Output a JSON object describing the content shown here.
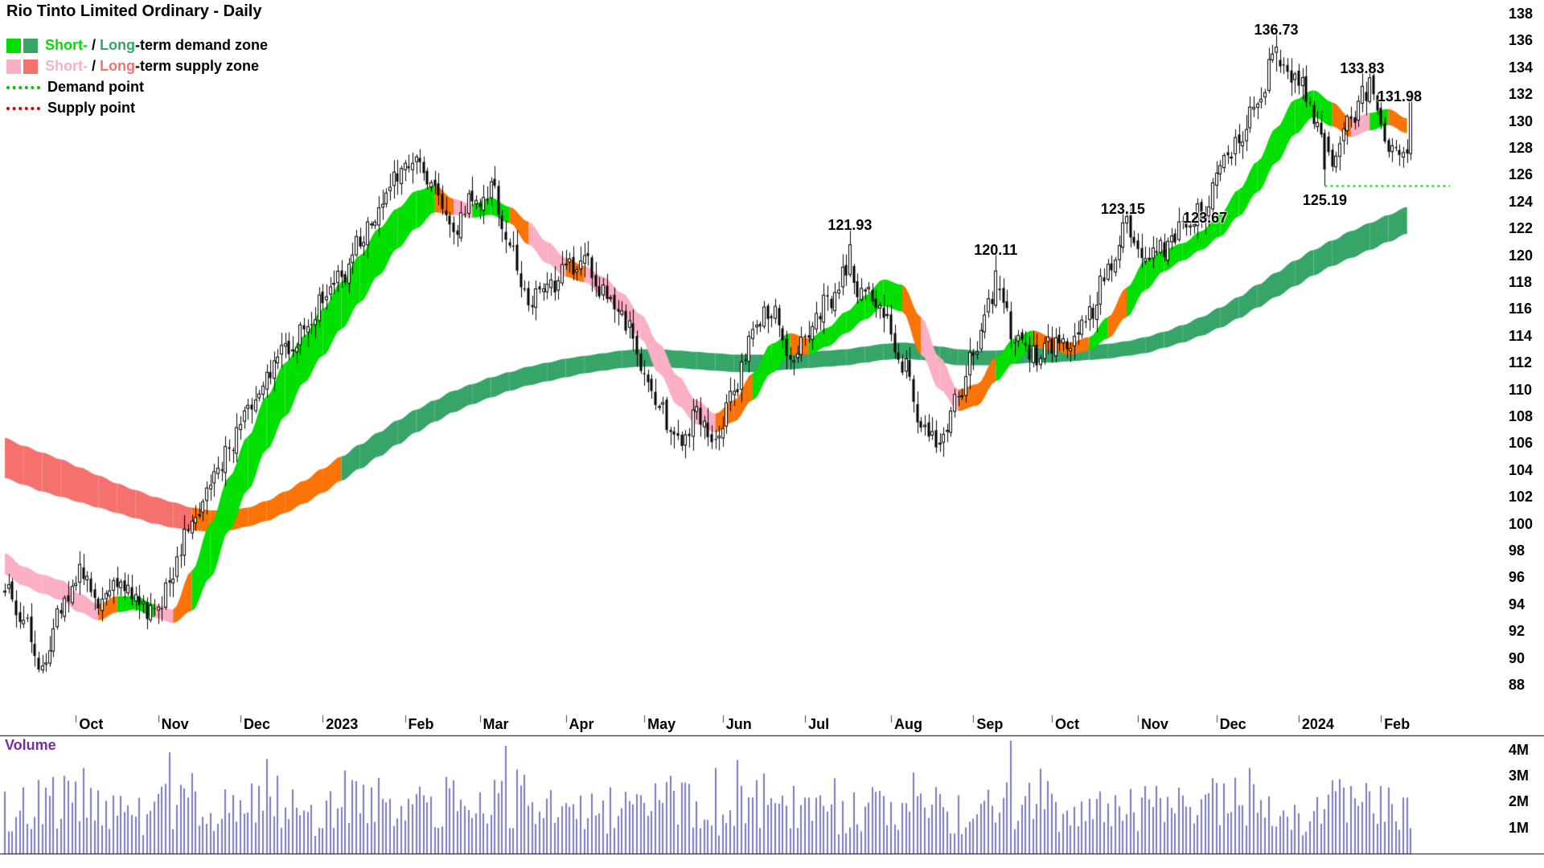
{
  "header": {
    "title": "Rio Tinto Limited Ordinary - Daily"
  },
  "legend": {
    "demand": {
      "short_label": "Short-",
      "sep": " / ",
      "long_label": "Long",
      "rest": "-term demand zone",
      "short_color": "#00DF00",
      "long_color": "#37A468"
    },
    "supply": {
      "short_label": "Short-",
      "sep": " / ",
      "long_label": "Long",
      "rest": "-term supply zone",
      "short_color": "#FBAFC4",
      "long_color": "#F4716D"
    },
    "demand_point": {
      "label": "Demand point",
      "color": "#00C400"
    },
    "supply_point": {
      "label": "Supply point",
      "color": "#DE0000"
    }
  },
  "price_axis": {
    "ticks": [
      138,
      136,
      134,
      132,
      130,
      128,
      126,
      124,
      122,
      120,
      118,
      116,
      114,
      112,
      110,
      108,
      106,
      104,
      102,
      100,
      98,
      96,
      94,
      92,
      90,
      88
    ]
  },
  "x_axis": {
    "labels": [
      {
        "label": "Oct",
        "d": 19
      },
      {
        "label": "Nov",
        "d": 41
      },
      {
        "label": "Dec",
        "d": 63
      },
      {
        "label": "2023",
        "d": 85
      },
      {
        "label": "Feb",
        "d": 107
      },
      {
        "label": "Mar",
        "d": 127
      },
      {
        "label": "Apr",
        "d": 150
      },
      {
        "label": "May",
        "d": 171
      },
      {
        "label": "Jun",
        "d": 192
      },
      {
        "label": "Jul",
        "d": 214
      },
      {
        "label": "Aug",
        "d": 237
      },
      {
        "label": "Sep",
        "d": 259
      },
      {
        "label": "Oct",
        "d": 280
      },
      {
        "label": "Nov",
        "d": 303
      },
      {
        "label": "Dec",
        "d": 324
      },
      {
        "label": "2024",
        "d": 346
      },
      {
        "label": "Feb",
        "d": 368
      }
    ]
  },
  "volume": {
    "label": "Volume",
    "ticks": [
      {
        "label": "4M",
        "v": 4
      },
      {
        "label": "3M",
        "v": 3
      },
      {
        "label": "2M",
        "v": 2
      },
      {
        "label": "1M",
        "v": 1
      }
    ]
  },
  "chart_data": {
    "type": "candlestick",
    "title": "Rio Tinto Limited Ordinary - Daily",
    "ylim": [
      88,
      138
    ],
    "n_days": 377,
    "anchors_weekly_close": [
      95.0,
      92.5,
      89.5,
      93.5,
      96.5,
      94.5,
      96.0,
      94.0,
      93.0,
      96.5,
      100.0,
      103.0,
      105.5,
      108.5,
      111.0,
      113.0,
      114.5,
      116.5,
      118.5,
      121.0,
      123.5,
      126.0,
      127.3,
      124.5,
      122.0,
      124.0,
      124.8,
      120.5,
      116.5,
      117.5,
      119.0,
      119.5,
      117.5,
      115.5,
      112.0,
      108.5,
      106.0,
      108.0,
      106.5,
      110.0,
      114.0,
      116.0,
      112.5,
      114.5,
      116.5,
      119.0,
      117.0,
      115.5,
      112.0,
      107.5,
      105.5,
      109.5,
      113.5,
      117.5,
      114.0,
      112.5,
      113.5,
      113.0,
      115.5,
      119.0,
      122.3,
      120.3,
      120.5,
      122.0,
      123.2,
      126.5,
      129.0,
      131.5,
      135.0,
      133.5,
      130.5,
      126.8,
      130.5,
      132.5,
      128.5,
      127.3
    ],
    "short_band": {
      "top": [
        97.8,
        96.8,
        96.2,
        95.8,
        94.8,
        94.0,
        94.6,
        94.6,
        94.0,
        93.6,
        96.5,
        100.0,
        103.5,
        106.5,
        109.5,
        112.0,
        114.0,
        116.0,
        118.0,
        120.0,
        122.0,
        123.5,
        124.8,
        125.2,
        124.2,
        123.8,
        124.3,
        123.6,
        122.5,
        121.0,
        119.8,
        119.2,
        118.4,
        117.2,
        115.6,
        113.4,
        111.0,
        109.2,
        108.2,
        109.2,
        111.2,
        113.4,
        114.2,
        113.8,
        114.6,
        115.8,
        117.0,
        118.2,
        117.8,
        115.4,
        112.4,
        110.0,
        110.4,
        112.4,
        113.8,
        114.4,
        113.9,
        113.5,
        113.9,
        115.4,
        117.6,
        119.6,
        120.4,
        120.9,
        121.8,
        123.1,
        124.9,
        127.0,
        129.5,
        131.6,
        132.3,
        131.4,
        130.2,
        130.6,
        130.9,
        130.2
      ],
      "bot": [
        96.2,
        95.4,
        94.8,
        94.3,
        93.4,
        92.8,
        93.4,
        93.6,
        93.0,
        92.6,
        93.5,
        96.0,
        99.5,
        102.5,
        105.5,
        108.0,
        110.5,
        112.5,
        114.5,
        116.5,
        118.5,
        120.5,
        122.0,
        123.2,
        123.0,
        122.8,
        123.0,
        122.4,
        120.8,
        119.4,
        118.4,
        118.0,
        117.0,
        115.6,
        113.8,
        111.2,
        108.8,
        107.4,
        106.8,
        107.6,
        109.2,
        111.2,
        112.6,
        112.6,
        113.2,
        114.2,
        115.2,
        116.2,
        115.8,
        112.6,
        110.0,
        108.4,
        108.8,
        110.6,
        112.0,
        113.2,
        112.9,
        112.6,
        112.9,
        113.8,
        115.4,
        117.4,
        118.8,
        119.6,
        120.4,
        121.4,
        122.9,
        124.7,
        126.9,
        129.0,
        130.3,
        129.6,
        128.8,
        129.3,
        129.7,
        129.1
      ],
      "state_segments": [
        "pppppoggpo",
        "gggggggggg",
        "gggopggopp",
        "opppppppoo",
        "ggogggggop",
        "pooggooogo",
        "gggggggggg",
        "gopgoo"
      ]
    },
    "long_band": {
      "top": [
        106.4,
        105.8,
        105.3,
        104.8,
        104.2,
        103.6,
        103.0,
        102.5,
        102.0,
        101.6,
        101.2,
        101.0,
        101.0,
        101.2,
        101.7,
        102.4,
        103.2,
        104.1,
        105.0,
        105.9,
        106.8,
        107.7,
        108.5,
        109.2,
        109.9,
        110.4,
        110.9,
        111.3,
        111.7,
        112.0,
        112.3,
        112.5,
        112.7,
        112.9,
        113.0,
        113.0,
        112.9,
        112.8,
        112.7,
        112.6,
        112.6,
        112.6,
        112.7,
        112.8,
        112.9,
        113.0,
        113.2,
        113.4,
        113.5,
        113.4,
        113.2,
        113.0,
        112.9,
        112.9,
        113.0,
        113.1,
        113.1,
        113.2,
        113.3,
        113.4,
        113.6,
        113.9,
        114.3,
        114.8,
        115.4,
        116.1,
        116.9,
        117.8,
        118.7,
        119.6,
        120.4,
        121.1,
        121.8,
        122.4,
        123.0,
        123.6
      ],
      "bot": [
        103.4,
        102.9,
        102.4,
        102.0,
        101.6,
        101.2,
        100.8,
        100.4,
        100.0,
        99.7,
        99.5,
        99.4,
        99.5,
        99.8,
        100.2,
        100.8,
        101.5,
        102.3,
        103.2,
        104.1,
        105.0,
        105.9,
        106.8,
        107.6,
        108.3,
        108.9,
        109.4,
        109.9,
        110.3,
        110.6,
        110.9,
        111.2,
        111.4,
        111.6,
        111.7,
        111.7,
        111.6,
        111.5,
        111.4,
        111.3,
        111.3,
        111.4,
        111.5,
        111.6,
        111.7,
        111.8,
        112.0,
        112.2,
        112.3,
        112.2,
        112.0,
        111.8,
        111.8,
        111.8,
        111.9,
        112.0,
        112.0,
        112.1,
        112.2,
        112.3,
        112.5,
        112.7,
        113.1,
        113.5,
        114.0,
        114.6,
        115.3,
        116.1,
        116.9,
        117.7,
        118.5,
        119.2,
        119.8,
        120.4,
        121.0,
        121.6
      ],
      "state_segments": [
        "RRRRRRRRRR",
        "OOOOOOOO",
        "GGGGGGGGGG",
        "GGGGGGGGGG",
        "GGGGGGGGGG",
        "GGGGGGGGGG",
        "GGGGGGGGGG",
        "GGGGGGGG"
      ]
    },
    "events": [
      {
        "d": 226,
        "t": "h",
        "v": 121.93
      },
      {
        "d": 265,
        "t": "h",
        "v": 120.11
      },
      {
        "d": 299,
        "t": "h",
        "v": 123.15
      },
      {
        "d": 321,
        "t": "h",
        "v": 123.67
      },
      {
        "d": 340,
        "t": "h",
        "v": 136.73
      },
      {
        "d": 353,
        "t": "l",
        "v": 125.19
      },
      {
        "d": 363,
        "t": "h",
        "v": 133.83
      },
      {
        "d": 376,
        "t": "c",
        "v": 131.98
      }
    ],
    "annotations": [
      {
        "text": "121.93",
        "d": 226,
        "v": 121.93,
        "pos": "above",
        "dy": 10
      },
      {
        "text": "120.11",
        "d": 265,
        "v": 120.11,
        "pos": "above",
        "dy": 10
      },
      {
        "text": "123.15",
        "d": 299,
        "v": 123.15,
        "pos": "above",
        "dy": 10
      },
      {
        "text": "123.67",
        "d": 321,
        "v": 123.67,
        "pos": "above",
        "dy": 30
      },
      {
        "text": "136.73",
        "d": 340,
        "v": 136.73,
        "pos": "above",
        "dy": 14
      },
      {
        "text": "125.19",
        "d": 353,
        "v": 125.19,
        "pos": "below",
        "dy": 0
      },
      {
        "text": "133.83",
        "d": 363,
        "v": 133.83,
        "pos": "above",
        "dy": 13
      },
      {
        "text": "131.98",
        "d": 373,
        "v": 131.98,
        "pos": "above",
        "dy": 17
      }
    ],
    "demand_line": {
      "value": 125.19,
      "from_d": 353
    },
    "volume_anchors": [
      1.7,
      1.6,
      1.8,
      1.9,
      2.2,
      1.7,
      1.5,
      1.4,
      1.6,
      1.9,
      2.1,
      1.8,
      1.7,
      1.9,
      2.3,
      1.8,
      1.3,
      1.6,
      1.8,
      1.9,
      2.1,
      2.2,
      2.0,
      2.2,
      1.8,
      1.7,
      2.0,
      2.1,
      1.9,
      1.8,
      1.5,
      1.4,
      1.6,
      1.8,
      1.7,
      1.8,
      2.0,
      1.7,
      1.4,
      1.6,
      1.8,
      2.0,
      1.8,
      1.4,
      1.5,
      1.6,
      1.7,
      1.8,
      2.0,
      2.2,
      1.8,
      1.5,
      1.6,
      1.9,
      1.8,
      2.4,
      1.7,
      1.5,
      1.6,
      1.7,
      1.8,
      1.9,
      1.8,
      1.7,
      1.8,
      1.9,
      2.0,
      1.8,
      1.2,
      1.4,
      1.7,
      1.9,
      1.7,
      1.8,
      1.6,
      1.5
    ],
    "volume_spikes": [
      {
        "d": 44,
        "v": 3.9
      },
      {
        "d": 73,
        "v": 3.0
      },
      {
        "d": 91,
        "v": 3.2
      },
      {
        "d": 134,
        "v": 4.15
      },
      {
        "d": 178,
        "v": 3.0
      },
      {
        "d": 190,
        "v": 3.3
      },
      {
        "d": 196,
        "v": 3.6
      },
      {
        "d": 222,
        "v": 2.9
      },
      {
        "d": 269,
        "v": 4.35
      },
      {
        "d": 305,
        "v": 2.6
      },
      {
        "d": 333,
        "v": 3.3
      },
      {
        "d": 356,
        "v": 2.4
      },
      {
        "d": 368,
        "v": 2.6
      }
    ],
    "colors": {
      "up": "#FFFFFF",
      "down": "#000000",
      "outline": "#000000",
      "short_demand": "#00DF00",
      "short_supply": "#FBAFC4",
      "long_demand": "#37A468",
      "long_supply": "#F4716D",
      "transition": "#F97306",
      "volume": "#7B7BC4",
      "demand_line": "#00C400"
    }
  }
}
